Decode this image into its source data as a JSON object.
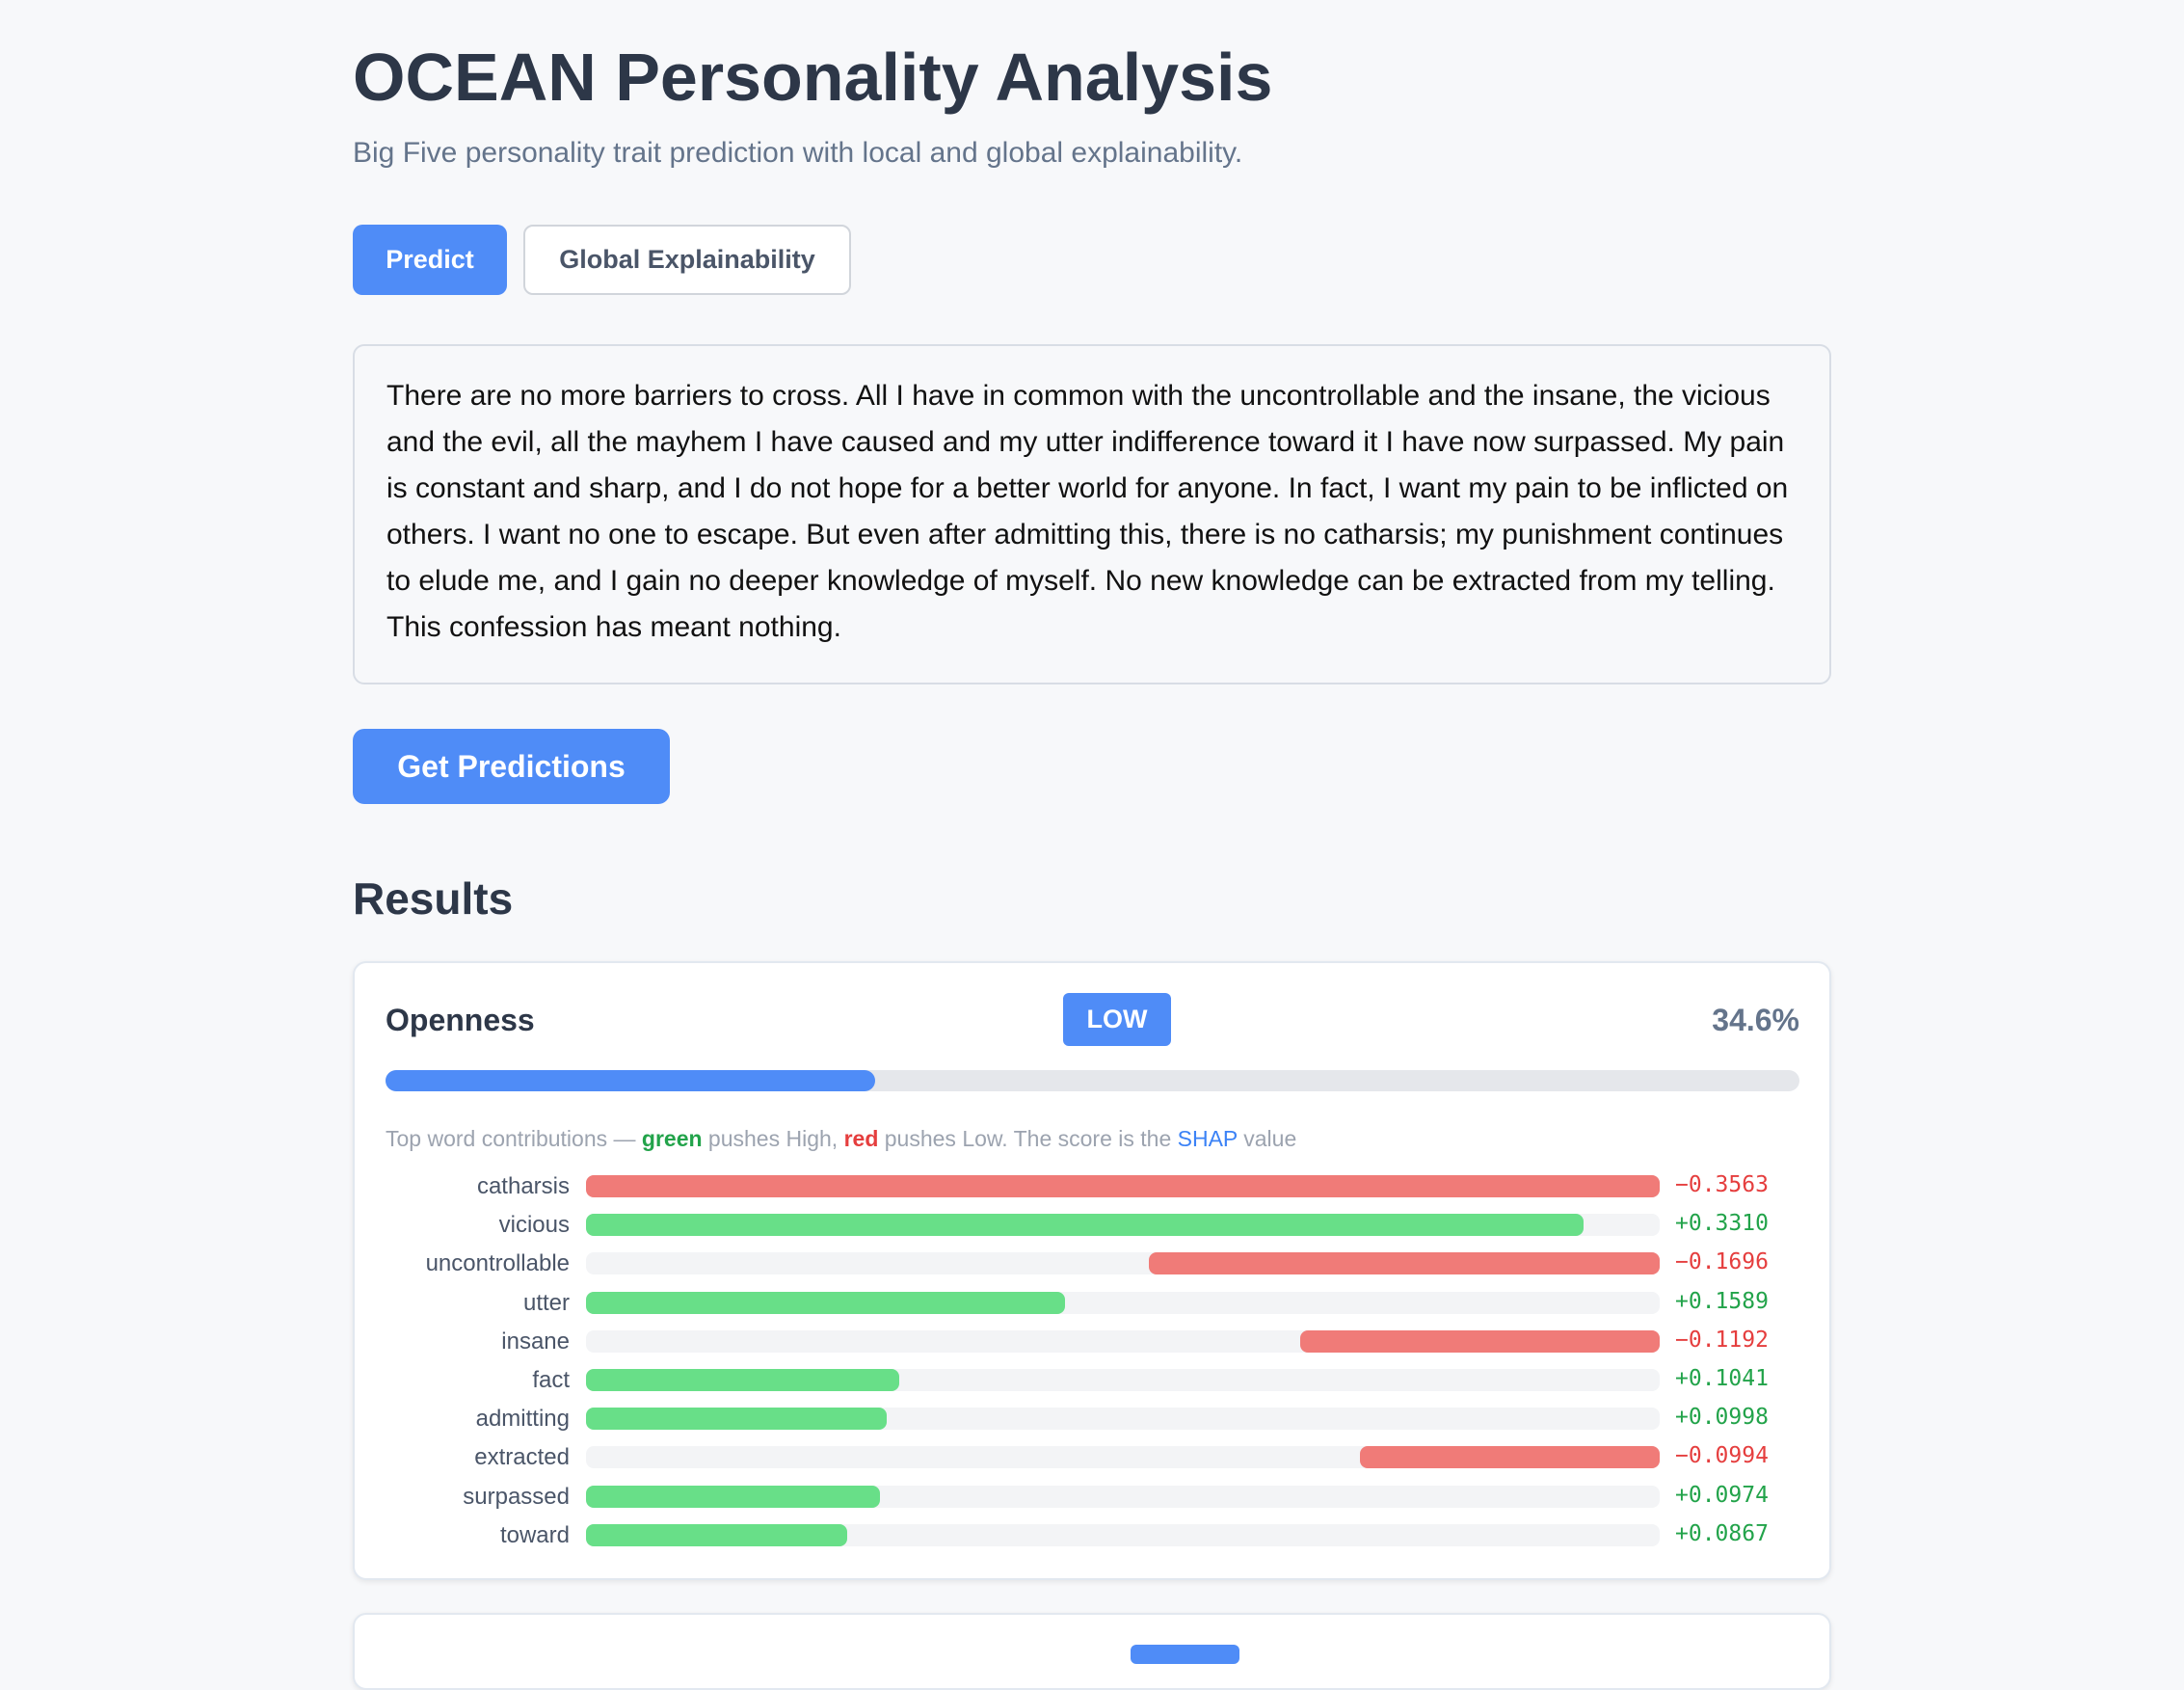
{
  "header": {
    "title": "OCEAN Personality Analysis",
    "subtitle": "Big Five personality trait prediction with local and global explainability."
  },
  "tabs": [
    "Predict",
    "Global Explainability"
  ],
  "input_text": "There are no more barriers to cross. All I have in common with the uncontrollable and the insane, the vicious and the evil, all the mayhem I have caused and my utter indifference toward it I have now surpassed. My pain is constant and sharp, and I do not hope for a better world for anyone. In fact, I want my pain to be inflicted on others. I want no one to escape. But even after admitting this, there is no catharsis; my punishment continues to elude me, and I gain no deeper knowledge of myself. No new knowledge can be extracted from my telling. This confession has meant nothing.",
  "submit_button": "Get Predictions",
  "results": {
    "heading": "Results",
    "cards": [
      {
        "trait": "Openness",
        "level": "LOW",
        "score": {
          "value": 34.6,
          "label": "34.6%"
        },
        "score_lim": [
          0,
          100
        ],
        "legend": [
          "Top word contributions — ",
          "green",
          " pushes High, ",
          "red",
          " pushes Low. The score is the ",
          "SHAP",
          " value"
        ],
        "contributions": {
          "words": [
            "catharsis",
            "vicious",
            "uncontrollable",
            "utter",
            "insane",
            "fact",
            "admitting",
            "extracted",
            "surpassed",
            "toward"
          ],
          "values": [
            -0.3563,
            0.331,
            -0.1696,
            0.1589,
            -0.1192,
            0.1041,
            0.0998,
            -0.0994,
            0.0974,
            0.0867
          ],
          "value_labels": [
            "−0.3563",
            "+0.3310",
            "−0.1696",
            "+0.1589",
            "−0.1192",
            "+0.1041",
            "+0.0998",
            "−0.0994",
            "+0.0974",
            "+0.0867"
          ]
        }
      }
    ]
  }
}
